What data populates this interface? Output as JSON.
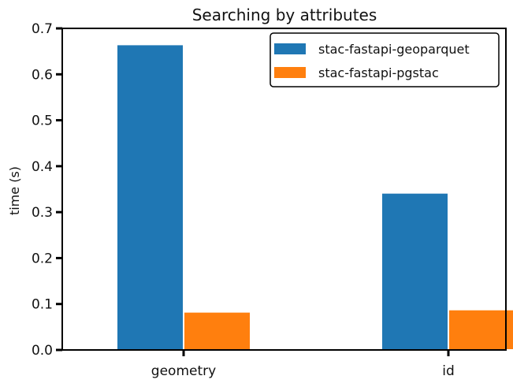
{
  "chart_data": {
    "type": "bar",
    "title": "Searching by attributes",
    "xlabel": "",
    "ylabel": "time (s)",
    "categories": [
      "geometry",
      "id"
    ],
    "series": [
      {
        "name": "stac-fastapi-geoparquet",
        "color": "#1f77b4",
        "values": [
          0.665,
          0.342
        ]
      },
      {
        "name": "stac-fastapi-pgstac",
        "color": "#ff7f0e",
        "values": [
          0.083,
          0.088
        ]
      }
    ],
    "ylim": [
      0,
      0.7
    ],
    "yticks": [
      0.0,
      0.1,
      0.2,
      0.3,
      0.4,
      0.5,
      0.6,
      0.7
    ],
    "ytick_labels": [
      "0.0",
      "0.1",
      "0.2",
      "0.3",
      "0.4",
      "0.5",
      "0.6",
      "0.7"
    ],
    "grid": false,
    "legend_position": "top-right"
  }
}
